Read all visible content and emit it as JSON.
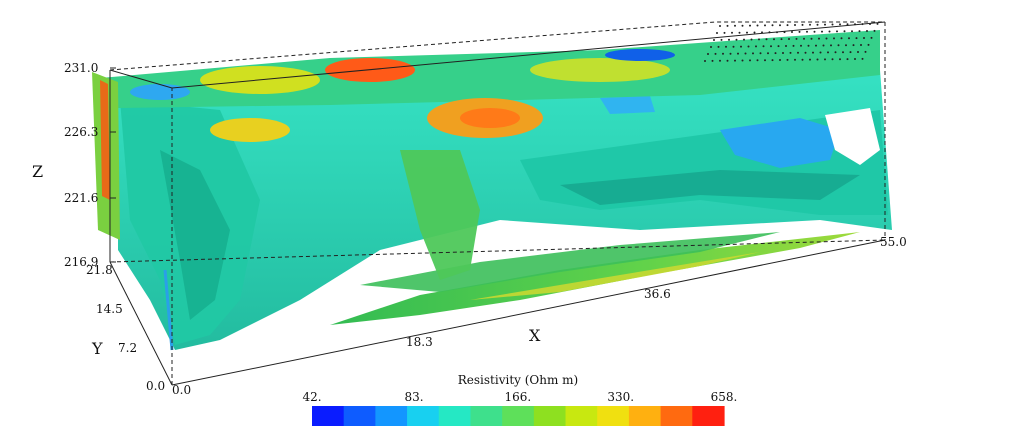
{
  "chart_data": {
    "type": "heatmap",
    "title": "",
    "axes": {
      "x": {
        "label": "X",
        "range": [
          0.0,
          55.0
        ],
        "ticks": [
          "0.0",
          "18.3",
          "36.6",
          "55.0"
        ]
      },
      "y": {
        "label": "Y",
        "range": [
          0.0,
          21.8
        ],
        "ticks": [
          "0.0",
          "7.2",
          "14.5",
          "21.8"
        ]
      },
      "z": {
        "label": "Z",
        "range": [
          216.9,
          231.0
        ],
        "ticks": [
          "216.9",
          "221.6",
          "226.3",
          "231.0"
        ]
      }
    },
    "colorbar": {
      "title": "Resistivity (Ohm m)",
      "tick_labels": [
        "42.",
        "83.",
        "166.",
        "330.",
        "658."
      ],
      "tick_values": [
        42,
        83,
        166,
        330,
        658
      ],
      "scale": "log",
      "colors": [
        "#0a1cff",
        "#0e5cff",
        "#1396ff",
        "#18d0f0",
        "#25e8c4",
        "#3ee08c",
        "#5ee05a",
        "#8ee020",
        "#c8e810",
        "#f0e010",
        "#ffb010",
        "#ff6a10",
        "#ff2010"
      ]
    },
    "render": "3D resistivity isosurface volume in wireframe bounding box"
  }
}
